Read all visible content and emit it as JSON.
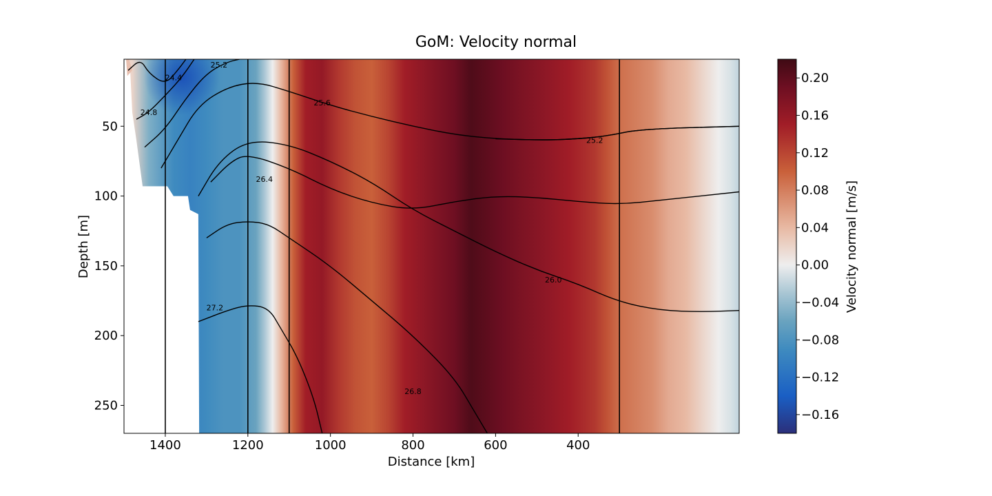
{
  "chart_data": {
    "type": "heatmap",
    "title": "GoM: Velocity normal",
    "xlabel": "Distance [km]",
    "ylabel": "Depth [m]",
    "xlim": [
      1500,
      10
    ],
    "ylim": [
      270,
      2
    ],
    "x_reversed": true,
    "y_inverted": true,
    "x_ticks": [
      1400,
      1200,
      1000,
      800,
      600,
      400
    ],
    "y_ticks": [
      50,
      100,
      150,
      200,
      250
    ],
    "colorbar": {
      "label": "Velocity normal [m/s]",
      "vmin": -0.18,
      "vmax": 0.22,
      "ticks": [
        "0.20",
        "0.16",
        "0.12",
        "0.08",
        "0.04",
        "0.00",
        "−0.04",
        "−0.08",
        "−0.12",
        "−0.16"
      ],
      "colormap": [
        "#2b2f7a",
        "#1a5fc4",
        "#3f8bbf",
        "#6aa3bf",
        "#a9c6d4",
        "#eeeeee",
        "#e8b9a3",
        "#c9603a",
        "#a11d27",
        "#6e0f22",
        "#3f0a14"
      ]
    },
    "velocity_profile": {
      "x": [
        1480,
        1440,
        1380,
        1340,
        1300,
        1260,
        1220,
        1180,
        1160,
        1140,
        1120,
        1090,
        1060,
        1020,
        980,
        940,
        900,
        860,
        820,
        760,
        700,
        660,
        620,
        580,
        540,
        500,
        460,
        420,
        390,
        360,
        330,
        300,
        260,
        220,
        180,
        140,
        100,
        60,
        30,
        10
      ],
      "v": [
        0.02,
        -0.05,
        -0.09,
        -0.1,
        -0.09,
        -0.08,
        -0.08,
        -0.06,
        -0.03,
        0.0,
        0.04,
        0.1,
        0.15,
        0.16,
        0.13,
        0.11,
        0.1,
        0.12,
        0.15,
        0.17,
        0.19,
        0.21,
        0.2,
        0.19,
        0.18,
        0.17,
        0.16,
        0.15,
        0.14,
        0.13,
        0.11,
        0.09,
        0.08,
        0.07,
        0.05,
        0.04,
        0.02,
        0.0,
        -0.01,
        -0.02
      ]
    },
    "surface_jet": {
      "x": 1360,
      "depth": 15,
      "v": -0.17
    },
    "vertical_lines_km": [
      1400,
      1200,
      1100,
      300
    ],
    "density_contours": [
      {
        "label": "24.4",
        "label_x": 1380,
        "label_y": 15,
        "points": [
          [
            1490,
            10
          ],
          [
            1460,
            2
          ],
          [
            1440,
            12
          ],
          [
            1400,
            20
          ],
          [
            1370,
            10
          ],
          [
            1350,
            2
          ]
        ]
      },
      {
        "label": "24.8",
        "label_x": 1440,
        "label_y": 40,
        "points": [
          [
            1470,
            45
          ],
          [
            1440,
            40
          ],
          [
            1400,
            28
          ],
          [
            1360,
            15
          ],
          [
            1330,
            2
          ]
        ]
      },
      {
        "label": "25.2",
        "label_x": 1270,
        "label_y": 6,
        "points": [
          [
            1450,
            65
          ],
          [
            1400,
            52
          ],
          [
            1350,
            30
          ],
          [
            1300,
            12
          ],
          [
            1250,
            4
          ],
          [
            1220,
            2
          ]
        ]
      },
      {
        "label": "25.6",
        "label_x": 1020,
        "label_y": 33,
        "points": [
          [
            1410,
            80
          ],
          [
            1370,
            60
          ],
          [
            1320,
            35
          ],
          [
            1250,
            22
          ],
          [
            1180,
            18
          ],
          [
            1100,
            25
          ],
          [
            1000,
            35
          ],
          [
            900,
            43
          ],
          [
            800,
            50
          ],
          [
            700,
            56
          ],
          [
            600,
            59
          ],
          [
            480,
            60
          ],
          [
            400,
            59
          ],
          [
            330,
            57
          ],
          [
            250,
            52
          ],
          [
            10,
            50
          ]
        ]
      },
      {
        "label": "25.2",
        "label_x": 360,
        "label_y": 60,
        "points": [
          [
            600,
            59
          ],
          [
            480,
            60
          ],
          [
            400,
            59
          ],
          [
            330,
            57
          ],
          [
            250,
            52
          ],
          [
            10,
            50
          ]
        ]
      },
      {
        "label": "26.0",
        "label_x": 460,
        "label_y": 160,
        "points": [
          [
            1320,
            100
          ],
          [
            1270,
            75
          ],
          [
            1200,
            60
          ],
          [
            1100,
            63
          ],
          [
            1000,
            75
          ],
          [
            900,
            90
          ],
          [
            800,
            110
          ],
          [
            700,
            125
          ],
          [
            600,
            140
          ],
          [
            500,
            153
          ],
          [
            400,
            163
          ],
          [
            300,
            176
          ],
          [
            200,
            182
          ],
          [
            100,
            183
          ],
          [
            10,
            182
          ]
        ]
      },
      {
        "label": "26.4",
        "label_x": 1160,
        "label_y": 88,
        "points": [
          [
            1290,
            90
          ],
          [
            1240,
            75
          ],
          [
            1200,
            70
          ],
          [
            1100,
            80
          ],
          [
            1000,
            95
          ],
          [
            900,
            105
          ],
          [
            800,
            110
          ],
          [
            700,
            104
          ],
          [
            600,
            100
          ],
          [
            500,
            101
          ],
          [
            400,
            104
          ],
          [
            300,
            106
          ],
          [
            200,
            103
          ],
          [
            10,
            97
          ]
        ]
      },
      {
        "label": "26.8",
        "label_x": 800,
        "label_y": 240,
        "points": [
          [
            1300,
            130
          ],
          [
            1250,
            120
          ],
          [
            1200,
            118
          ],
          [
            1150,
            120
          ],
          [
            1100,
            130
          ],
          [
            1000,
            150
          ],
          [
            900,
            175
          ],
          [
            800,
            200
          ],
          [
            700,
            230
          ],
          [
            650,
            255
          ],
          [
            620,
            270
          ]
        ]
      },
      {
        "label": "27.2",
        "label_x": 1280,
        "label_y": 180,
        "points": [
          [
            1320,
            190
          ],
          [
            1250,
            182
          ],
          [
            1200,
            178
          ],
          [
            1150,
            180
          ],
          [
            1120,
            195
          ],
          [
            1080,
            215
          ],
          [
            1040,
            245
          ],
          [
            1020,
            270
          ]
        ]
      }
    ],
    "grid": false,
    "legend": "none"
  }
}
